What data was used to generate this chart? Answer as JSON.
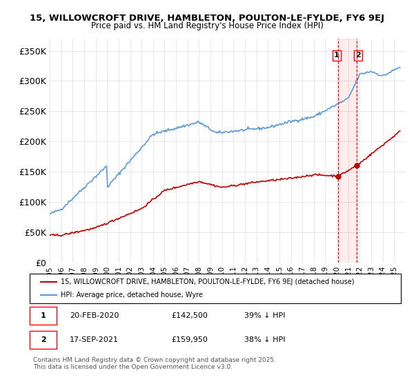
{
  "title_line1": "15, WILLOWCROFT DRIVE, HAMBLETON, POULTON-LE-FYLDE, FY6 9EJ",
  "title_line2": "Price paid vs. HM Land Registry's House Price Index (HPI)",
  "ylabel": "",
  "xlabel": "",
  "yticks": [
    0,
    50000,
    100000,
    150000,
    200000,
    250000,
    300000,
    350000
  ],
  "ytick_labels": [
    "£0",
    "£50K",
    "£100K",
    "£150K",
    "£200K",
    "£250K",
    "£300K",
    "£350K"
  ],
  "hpi_color": "#5b9bd5",
  "price_color": "#c00000",
  "marker1_x": 2020.13,
  "marker2_x": 2021.72,
  "marker1_price": 142500,
  "marker2_price": 159950,
  "vline_color": "#ff0000",
  "sale1_label": "1",
  "sale2_label": "2",
  "legend_property": "15, WILLOWCROFT DRIVE, HAMBLETON, POULTON-LE-FYLDE, FY6 9EJ (detached house)",
  "legend_hpi": "HPI: Average price, detached house, Wyre",
  "table_row1": [
    "1",
    "20-FEB-2020",
    "£142,500",
    "39% ↓ HPI"
  ],
  "table_row2": [
    "2",
    "17-SEP-2021",
    "£159,950",
    "38% ↓ HPI"
  ],
  "footer": "Contains HM Land Registry data © Crown copyright and database right 2025.\nThis data is licensed under the Open Government Licence v3.0.",
  "background_color": "#ffffff",
  "plot_bg_color": "#ffffff",
  "grid_color": "#dddddd"
}
